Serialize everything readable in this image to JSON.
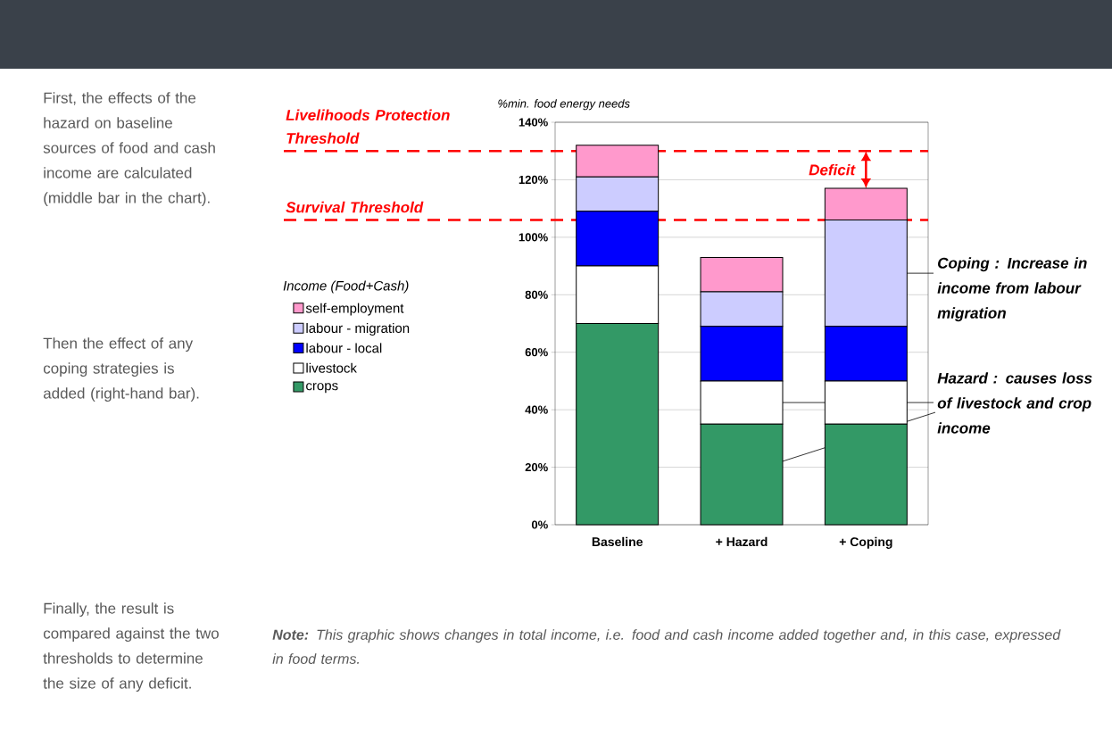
{
  "chart_data": {
    "type": "bar",
    "stacked": true,
    "grid": "y",
    "legend": "left",
    "legend_title": "Income (Food+Cash)",
    "ylabel": "%min. food energy needs",
    "categories": [
      "Baseline",
      "+ Hazard",
      "+ Coping"
    ],
    "series": [
      {
        "name": "crops",
        "color": "#339966",
        "values": [
          70,
          35,
          35
        ]
      },
      {
        "name": "livestock",
        "color": "#ffffff",
        "values": [
          20,
          15,
          15
        ]
      },
      {
        "name": "labour - local",
        "color": "#0000ff",
        "values": [
          19,
          19,
          19
        ]
      },
      {
        "name": "labour - migration",
        "color": "#ccccff",
        "values": [
          12,
          12,
          37
        ]
      },
      {
        "name": "self-employment",
        "color": "#ff99cc",
        "values": [
          11,
          12,
          11
        ]
      }
    ],
    "ylim": [
      0,
      140
    ],
    "yticks": [
      {
        "value": 0,
        "label": "0%"
      },
      {
        "value": 20,
        "label": "20%"
      },
      {
        "value": 40,
        "label": "40%"
      },
      {
        "value": 60,
        "label": "60%"
      },
      {
        "value": 80,
        "label": "80%"
      },
      {
        "value": 100,
        "label": "100%"
      },
      {
        "value": 120,
        "label": "120%"
      },
      {
        "value": 140,
        "label": "140%"
      }
    ],
    "ref_lines": [
      {
        "axis": "y",
        "value": 130,
        "label": "Livelihoods Protection Threshold",
        "color": "#ff0000",
        "line_style": "dashed"
      },
      {
        "axis": "y",
        "value": 106,
        "label": "Survival Threshold",
        "color": "#ff0000",
        "line_style": "dashed"
      }
    ],
    "annotations": [
      "First, the effects of the hazard on baseline sources of food and cash income are calculated (middle bar in the chart).",
      "Then the effect of any coping strategies is added (right-hand bar).",
      "Finally, the result is compared against the two thresholds to determine the size of any deficit.",
      "**Note:** This graphic shows changes in total income, i.e. food and cash income added together and, in this case, expressed in food terms.",
      "Deficit",
      "Coping : Increase in income from labour migration",
      "Hazard : causes loss of livestock and crop income"
    ]
  }
}
